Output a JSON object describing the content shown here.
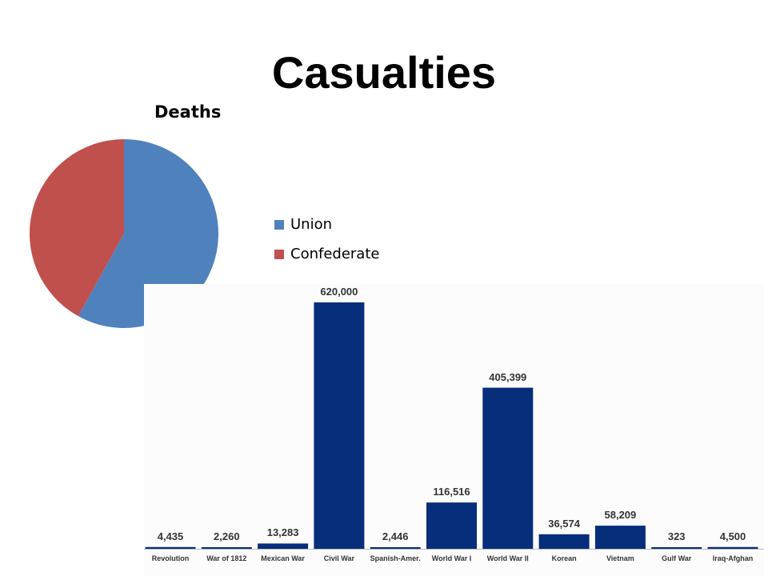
{
  "title": "Casualties",
  "chart_data": [
    {
      "type": "pie",
      "title": "Deaths",
      "legend_position": "right",
      "slices": [
        {
          "name": "Union",
          "value": 360000,
          "color": "#4F81BD"
        },
        {
          "name": "Confederate",
          "value": 260000,
          "color": "#C0504D"
        }
      ]
    },
    {
      "type": "bar",
      "color": "#062E7A",
      "categories": [
        "Revolution",
        "War of 1812",
        "Mexican War",
        "Civil War",
        "Spanish-Amer.",
        "World War I",
        "World War II",
        "Korean",
        "Vietnam",
        "Gulf War",
        "Iraq-Afghan"
      ],
      "values": [
        4435,
        2260,
        13283,
        620000,
        2446,
        116516,
        405399,
        36574,
        58209,
        323,
        4500
      ],
      "value_labels": [
        "4,435",
        "2,260",
        "13,283",
        "620,000",
        "2,446",
        "116,516",
        "405,399",
        "36,574",
        "58,209",
        "323",
        "4,500"
      ],
      "ylim": [
        0,
        620000
      ]
    }
  ]
}
